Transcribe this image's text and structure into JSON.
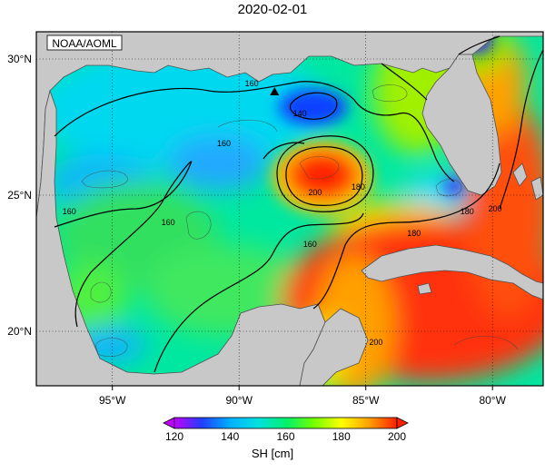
{
  "title": "2020-02-01",
  "credit": "NOAA/AOML",
  "map": {
    "lon_range": [
      -98,
      -78
    ],
    "lat_range": [
      18,
      31
    ],
    "lon_ticks": [
      {
        "value": -95,
        "label": "95°W"
      },
      {
        "value": -90,
        "label": "90°W"
      },
      {
        "value": -85,
        "label": "85°W"
      },
      {
        "value": -80,
        "label": "80°W"
      }
    ],
    "lat_ticks": [
      {
        "value": 20,
        "label": "20°N"
      },
      {
        "value": 25,
        "label": "25°N"
      },
      {
        "value": 30,
        "label": "30°N"
      }
    ],
    "contour_labels": [
      {
        "text": "160",
        "lon": -89.5,
        "lat": 29.1
      },
      {
        "text": "140",
        "lon": -87.6,
        "lat": 28.0
      },
      {
        "text": "160",
        "lon": -90.6,
        "lat": 26.9
      },
      {
        "text": "200",
        "lon": -87.0,
        "lat": 25.1
      },
      {
        "text": "180",
        "lon": -85.3,
        "lat": 25.3
      },
      {
        "text": "160",
        "lon": -96.7,
        "lat": 24.4
      },
      {
        "text": "160",
        "lon": -92.8,
        "lat": 24.0
      },
      {
        "text": "160",
        "lon": -87.2,
        "lat": 23.2
      },
      {
        "text": "180",
        "lon": -83.1,
        "lat": 23.6
      },
      {
        "text": "180",
        "lon": -81.0,
        "lat": 24.4
      },
      {
        "text": "200",
        "lon": -79.9,
        "lat": 24.5
      },
      {
        "text": "200",
        "lon": -84.6,
        "lat": 19.6
      }
    ],
    "marker": {
      "name": "triangle",
      "lon": -88.6,
      "lat": 28.8
    },
    "land_color": "#c8c8c8"
  },
  "colorbar": {
    "ticks": [
      "120",
      "140",
      "160",
      "180",
      "200"
    ],
    "range": [
      120,
      200
    ],
    "label": "SH [cm]",
    "colors": [
      "#c000ff",
      "#2040ff",
      "#00b0ff",
      "#00e0e0",
      "#00f070",
      "#70ff00",
      "#ffff00",
      "#ffa000",
      "#ff2000"
    ]
  }
}
